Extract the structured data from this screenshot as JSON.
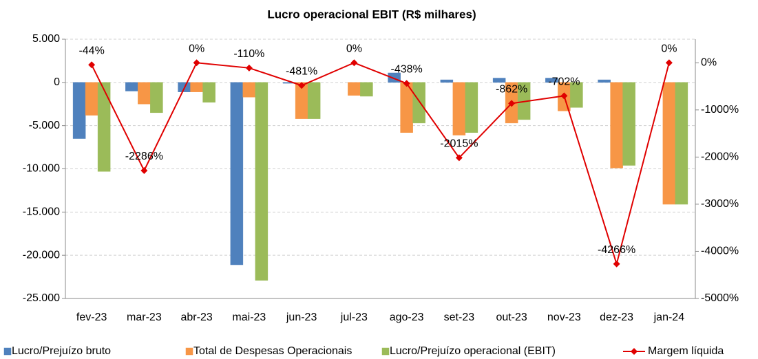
{
  "chart_data": {
    "type": "bar",
    "title": "Lucro operacional EBIT (R$ milhares)",
    "categories": [
      "fev-23",
      "mar-23",
      "abr-23",
      "mai-23",
      "jun-23",
      "jul-23",
      "ago-23",
      "set-23",
      "out-23",
      "nov-23",
      "dez-23",
      "jan-24"
    ],
    "series": [
      {
        "name": "Lucro/Prejuízo bruto",
        "color": "#4f81bd",
        "values": [
          -6500,
          -1000,
          -1100,
          -21100,
          -100,
          0,
          1100,
          300,
          500,
          500,
          300,
          0
        ]
      },
      {
        "name": "Total de Despesas Operacionais",
        "color": "#f79646",
        "values": [
          -3800,
          -2500,
          -1100,
          -1700,
          -4200,
          -1500,
          -5800,
          -6100,
          -4700,
          -3300,
          -9900,
          -14100
        ]
      },
      {
        "name": "Lucro/Prejuízo operacional (EBIT)",
        "color": "#9bbb59",
        "values": [
          -10300,
          -3500,
          -2300,
          -22900,
          -4200,
          -1600,
          -4700,
          -5800,
          -4300,
          -2900,
          -9600,
          -14100
        ]
      },
      {
        "name": "Margem líquida",
        "color": "#e00000",
        "type": "line",
        "axis": "y2",
        "values": [
          -44,
          -2286,
          0,
          -110,
          -481,
          0,
          -438,
          -2015,
          -862,
          -702,
          -4266,
          0
        ],
        "value_labels": [
          "-44%",
          "-2286%",
          "0%",
          "-110%",
          "-481%",
          "0%",
          "-438%",
          "-2015%",
          "-862%",
          "-702%",
          "-4266%",
          "0%"
        ]
      }
    ],
    "ylim": [
      -25000,
      5000
    ],
    "yticks": [
      {
        "value": -25000,
        "label": "-25.000"
      },
      {
        "value": -20000,
        "label": "-20.000"
      },
      {
        "value": -15000,
        "label": "-15.000"
      },
      {
        "value": -10000,
        "label": "-10.000"
      },
      {
        "value": -5000,
        "label": "-5.000"
      },
      0,
      {
        "value": 5000,
        "label": "5.000"
      }
    ],
    "y2lim": [
      -5000,
      500
    ],
    "y2ticks": [
      {
        "value": -5000,
        "label": "-5000%"
      },
      {
        "value": -4000,
        "label": "-4000%"
      },
      {
        "value": -3000,
        "label": "-3000%"
      },
      {
        "value": -2000,
        "label": "-2000%"
      },
      {
        "value": -1000,
        "label": "-1000%"
      },
      {
        "value": 0,
        "label": "0%"
      }
    ],
    "grid": true,
    "legend": "bottom"
  }
}
